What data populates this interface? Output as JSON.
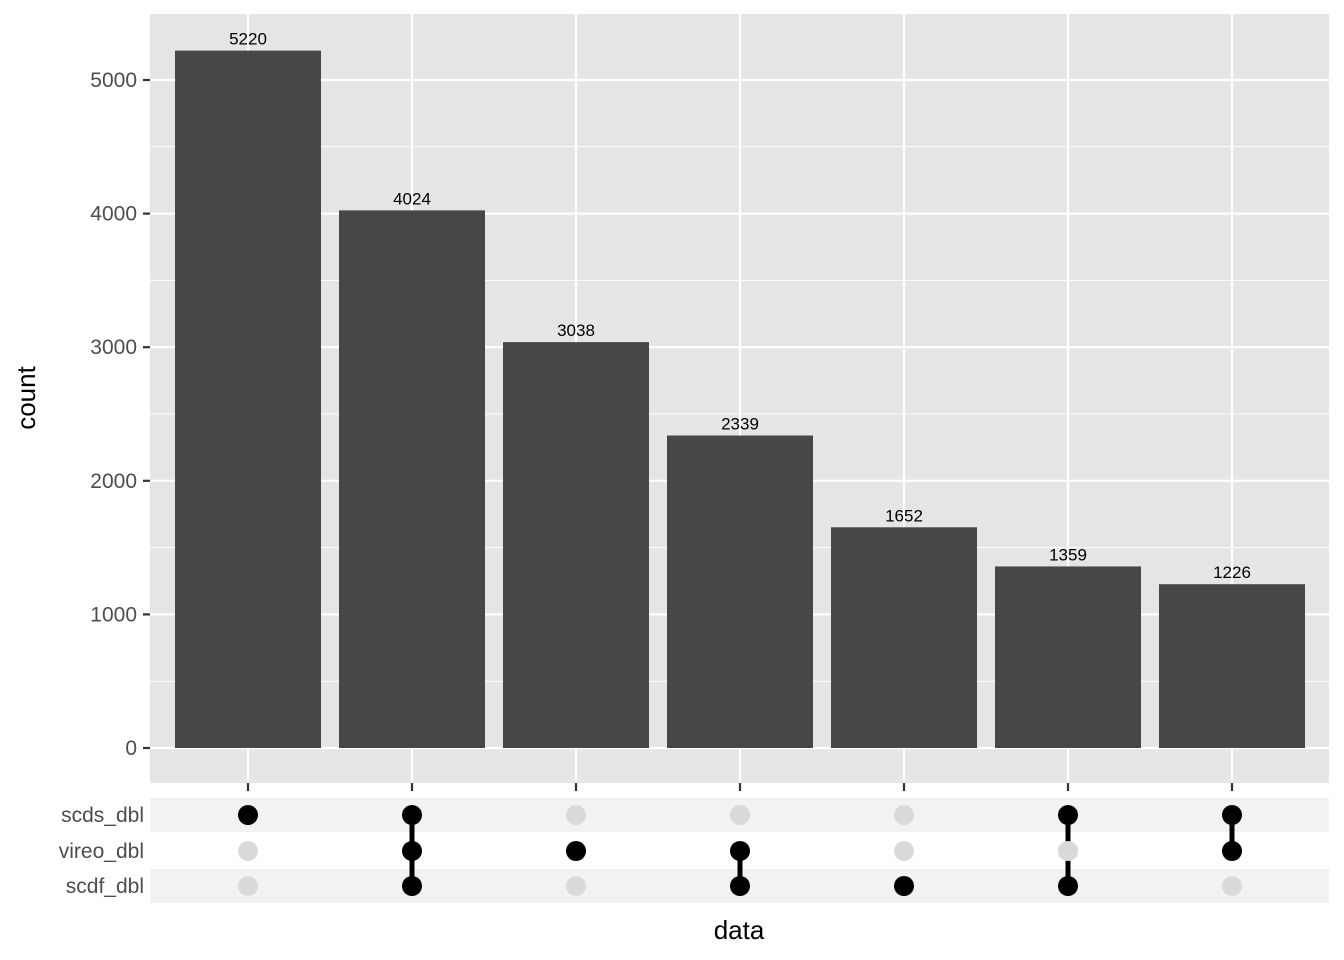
{
  "chart_data": {
    "type": "bar",
    "subtype": "upset",
    "xlabel": "data",
    "ylabel": "count",
    "ylim": [
      0,
      5480
    ],
    "yticks": [
      0,
      1000,
      2000,
      3000,
      4000,
      5000
    ],
    "ytick_labels": [
      "0",
      "1000",
      "2000",
      "3000",
      "4000",
      "5000"
    ],
    "grid": true,
    "legend": "none",
    "sets": [
      "scds_dbl",
      "vireo_dbl",
      "scdf_dbl"
    ],
    "intersections": [
      {
        "sets": [
          "scds_dbl"
        ],
        "value": 5220,
        "label": "5220"
      },
      {
        "sets": [
          "scds_dbl",
          "vireo_dbl",
          "scdf_dbl"
        ],
        "value": 4024,
        "label": "4024"
      },
      {
        "sets": [
          "vireo_dbl"
        ],
        "value": 3038,
        "label": "3038"
      },
      {
        "sets": [
          "vireo_dbl",
          "scdf_dbl"
        ],
        "value": 2339,
        "label": "2339"
      },
      {
        "sets": [
          "scdf_dbl"
        ],
        "value": 1652,
        "label": "1652"
      },
      {
        "sets": [
          "scds_dbl",
          "scdf_dbl"
        ],
        "value": 1359,
        "label": "1359"
      },
      {
        "sets": [
          "scds_dbl",
          "vireo_dbl"
        ],
        "value": 1226,
        "label": "1226"
      }
    ],
    "colors": {
      "panel_background": "#e5e5e5",
      "grid": "#ffffff",
      "bar": "#474747",
      "dot_active": "#000000",
      "dot_inactive": "#d9d9d9",
      "matrix_stripe": "#f2f2f2"
    }
  }
}
